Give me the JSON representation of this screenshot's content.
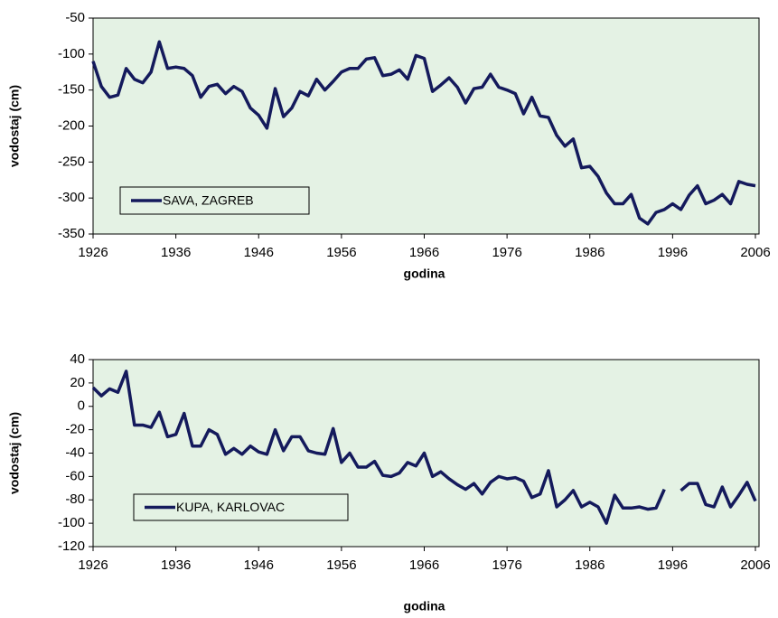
{
  "chart_data": [
    {
      "type": "line",
      "ylabel": "vodostaj (cm)",
      "xlabel": "godina",
      "x": [
        1926,
        1927,
        1928,
        1929,
        1930,
        1931,
        1932,
        1933,
        1934,
        1935,
        1936,
        1937,
        1938,
        1939,
        1940,
        1941,
        1942,
        1943,
        1944,
        1945,
        1946,
        1947,
        1948,
        1949,
        1950,
        1951,
        1952,
        1953,
        1954,
        1955,
        1956,
        1957,
        1958,
        1959,
        1960,
        1961,
        1962,
        1963,
        1964,
        1965,
        1966,
        1967,
        1968,
        1969,
        1970,
        1971,
        1972,
        1973,
        1974,
        1975,
        1976,
        1977,
        1978,
        1979,
        1980,
        1981,
        1982,
        1983,
        1984,
        1985,
        1986,
        1987,
        1988,
        1989,
        1990,
        1991,
        1992,
        1993,
        1994,
        1995,
        1996,
        1997,
        1998,
        1999,
        2000,
        2001,
        2002,
        2003,
        2004,
        2005,
        2006
      ],
      "series": [
        {
          "name": "SAVA, ZAGREB",
          "color": "#141a5c",
          "values": [
            -110,
            -145,
            -160,
            -157,
            -120,
            -135,
            -140,
            -125,
            -83,
            -120,
            -118,
            -120,
            -130,
            -160,
            -145,
            -142,
            -155,
            -145,
            -152,
            -175,
            -185,
            -203,
            -148,
            -187,
            -175,
            -152,
            -158,
            -135,
            -150,
            -138,
            -125,
            -120,
            -120,
            -107,
            -105,
            -130,
            -128,
            -122,
            -135,
            -102,
            -106,
            -152,
            -143,
            -133,
            -146,
            -168,
            -148,
            -146,
            -128,
            -146,
            -150,
            -155,
            -183,
            -160,
            -186,
            -188,
            -213,
            -228,
            -218,
            -258,
            -256,
            -270,
            -293,
            -308,
            -308,
            -295,
            -328,
            -336,
            -320,
            -316,
            -308,
            -316,
            -296,
            -283,
            -308,
            -303,
            -295,
            -308,
            -277,
            -281,
            -283
          ]
        }
      ],
      "xlim": [
        1926,
        2006
      ],
      "xticks": [
        1926,
        1936,
        1946,
        1956,
        1966,
        1976,
        1986,
        1996,
        2006
      ],
      "ylim": [
        -350,
        -50
      ],
      "yticks": [
        -350,
        -300,
        -250,
        -200,
        -150,
        -100,
        -50
      ],
      "legend": "lower left",
      "background": "#e4f2e4"
    },
    {
      "type": "line",
      "ylabel": "vodostaj (cm)",
      "xlabel": "godina",
      "x": [
        1926,
        1927,
        1928,
        1929,
        1930,
        1931,
        1932,
        1933,
        1934,
        1935,
        1936,
        1937,
        1938,
        1939,
        1940,
        1941,
        1942,
        1943,
        1944,
        1945,
        1946,
        1947,
        1948,
        1949,
        1950,
        1951,
        1952,
        1953,
        1954,
        1955,
        1956,
        1957,
        1958,
        1959,
        1960,
        1961,
        1962,
        1963,
        1964,
        1965,
        1966,
        1967,
        1968,
        1969,
        1970,
        1971,
        1972,
        1973,
        1974,
        1975,
        1976,
        1977,
        1978,
        1979,
        1980,
        1981,
        1982,
        1983,
        1984,
        1985,
        1986,
        1987,
        1988,
        1989,
        1990,
        1991,
        1992,
        1993,
        1994,
        1995,
        1996,
        1997,
        1998,
        1999,
        2000,
        2001,
        2002,
        2003,
        2004,
        2005,
        2006
      ],
      "series": [
        {
          "name": "KUPA, KARLOVAC",
          "color": "#141a5c",
          "values": [
            16,
            9,
            15,
            12,
            30,
            -16,
            -16,
            -18,
            -5,
            -26,
            -24,
            -6,
            -34,
            -34,
            -20,
            -24,
            -41,
            -36,
            -41,
            -34,
            -39,
            -41,
            -20,
            -38,
            -26,
            -26,
            -38,
            -40,
            -41,
            -19,
            -48,
            -40,
            -52,
            -52,
            -47,
            -59,
            -60,
            -57,
            -48,
            -51,
            -40,
            -60,
            -56,
            -62,
            -67,
            -71,
            -66,
            -75,
            -65,
            -60,
            -62,
            -61,
            -64,
            -78,
            -75,
            -55,
            -86,
            -80,
            -72,
            -86,
            -82,
            -86,
            -100,
            -76,
            -87,
            -87,
            -86,
            -88,
            -87,
            -71,
            null,
            -72,
            -66,
            -66,
            -84,
            -86,
            -69,
            -86,
            -76,
            -65,
            -81
          ]
        }
      ],
      "xlim": [
        1926,
        2006
      ],
      "xticks": [
        1926,
        1936,
        1946,
        1956,
        1966,
        1976,
        1986,
        1996,
        2006
      ],
      "ylim": [
        -120,
        40
      ],
      "yticks": [
        -120,
        -100,
        -80,
        -60,
        -40,
        -20,
        0,
        20,
        40
      ],
      "legend": "lower left",
      "background": "#e4f2e4"
    }
  ]
}
